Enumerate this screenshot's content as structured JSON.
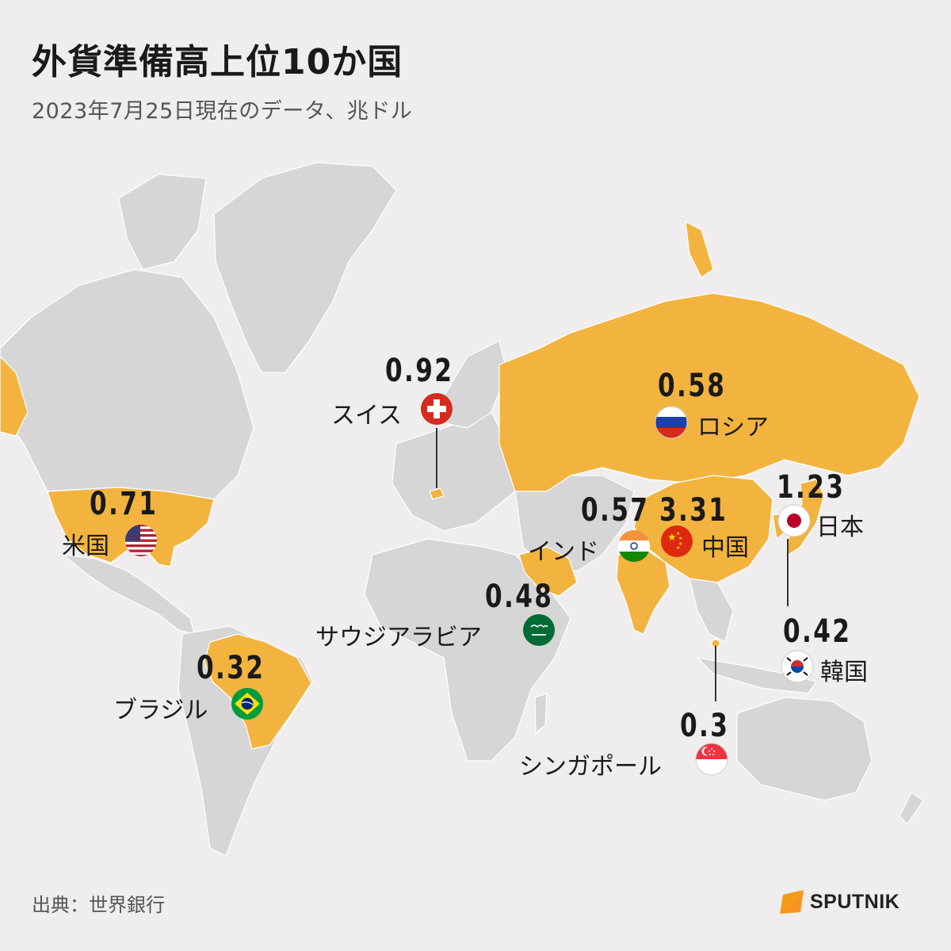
{
  "title": "外貨準備高上位10か国",
  "subtitle": "2023年7月25日現在のデータ、兆ドル",
  "source": "出典：世界銀行",
  "brand": "SPUTNIK",
  "colors": {
    "highlight": "#f2b43f",
    "land": "#d7d6d7",
    "background": "#efedee",
    "brand_orange": "#f7931e"
  },
  "countries": [
    {
      "id": "china",
      "name": "中国",
      "value": "3.31",
      "flag": "china-flag-icon"
    },
    {
      "id": "japan",
      "name": "日本",
      "value": "1.23",
      "flag": "japan-flag-icon"
    },
    {
      "id": "switzerland",
      "name": "スイス",
      "value": "0.92",
      "flag": "switzerland-flag-icon"
    },
    {
      "id": "usa",
      "name": "米国",
      "value": "0.71",
      "flag": "usa-flag-icon"
    },
    {
      "id": "russia",
      "name": "ロシア",
      "value": "0.58",
      "flag": "russia-flag-icon"
    },
    {
      "id": "india",
      "name": "インド",
      "value": "0.57",
      "flag": "india-flag-icon"
    },
    {
      "id": "saudi",
      "name": "サウジアラビア",
      "value": "0.48",
      "flag": "saudi-flag-icon"
    },
    {
      "id": "korea",
      "name": "韓国",
      "value": "0.42",
      "flag": "korea-flag-icon"
    },
    {
      "id": "brazil",
      "name": "ブラジル",
      "value": "0.32",
      "flag": "brazil-flag-icon"
    },
    {
      "id": "singapore",
      "name": "シンガポール",
      "value": "0.3",
      "flag": "singapore-flag-icon"
    }
  ]
}
